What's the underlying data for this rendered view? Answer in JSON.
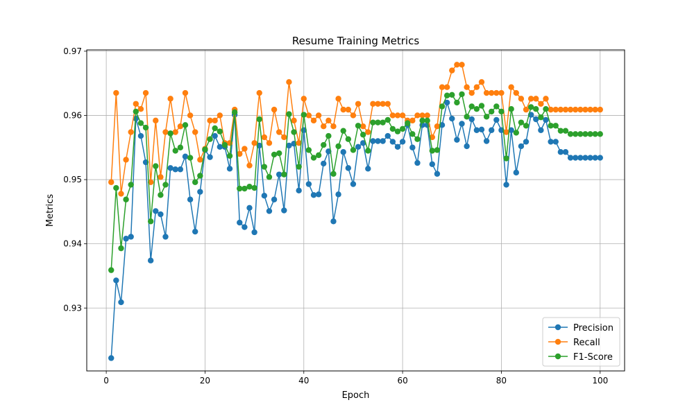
{
  "chart_data": {
    "type": "line",
    "title": "Resume Training Metrics",
    "xlabel": "Epoch",
    "ylabel": "Metrics",
    "xlim": [
      -3.95,
      104.95
    ],
    "ylim": [
      0.9202,
      0.9702
    ],
    "xticks": [
      0,
      20,
      40,
      60,
      80,
      100
    ],
    "xtick_labels": [
      "0",
      "20",
      "40",
      "60",
      "80",
      "100"
    ],
    "yticks": [
      0.93,
      0.94,
      0.95,
      0.96,
      0.97
    ],
    "ytick_labels": [
      "0.93",
      "0.94",
      "0.95",
      "0.96",
      "0.97"
    ],
    "grid": true,
    "legend_position": "lower-right",
    "series": [
      {
        "name": "Precision",
        "color": "#1f77b4",
        "values": [
          0.9222,
          0.9343,
          0.9309,
          0.9408,
          0.9411,
          0.9595,
          0.9568,
          0.9527,
          0.9374,
          0.9451,
          0.9446,
          0.9411,
          0.9518,
          0.9516,
          0.9516,
          0.9536,
          0.9469,
          0.9419,
          0.9481,
          0.9546,
          0.9535,
          0.9568,
          0.9551,
          0.9551,
          0.9517,
          0.9601,
          0.9433,
          0.9426,
          0.9456,
          0.9418,
          0.9553,
          0.9475,
          0.9451,
          0.9469,
          0.9508,
          0.9452,
          0.9553,
          0.9556,
          0.9483,
          0.9577,
          0.9493,
          0.9476,
          0.9477,
          0.9525,
          0.9544,
          0.9435,
          0.9477,
          0.9543,
          0.9518,
          0.9493,
          0.9551,
          0.9557,
          0.9517,
          0.956,
          0.956,
          0.956,
          0.9568,
          0.9559,
          0.9551,
          0.9559,
          0.9585,
          0.955,
          0.9526,
          0.9585,
          0.9585,
          0.9524,
          0.9509,
          0.9585,
          0.962,
          0.9595,
          0.9562,
          0.9587,
          0.9552,
          0.9594,
          0.9577,
          0.9578,
          0.956,
          0.9577,
          0.9593,
          0.9577,
          0.9492,
          0.9577,
          0.9511,
          0.9552,
          0.9559,
          0.9601,
          0.9594,
          0.9577,
          0.9593,
          0.9559,
          0.9559,
          0.9543,
          0.9543,
          0.9534,
          0.9534,
          0.9534,
          0.9534,
          0.9534,
          0.9534,
          0.9534
        ]
      },
      {
        "name": "Recall",
        "color": "#ff7f0e",
        "values": [
          0.9496,
          0.9635,
          0.9478,
          0.9531,
          0.9574,
          0.9618,
          0.961,
          0.9635,
          0.9496,
          0.9592,
          0.9504,
          0.9574,
          0.9626,
          0.9574,
          0.9583,
          0.9635,
          0.96,
          0.9574,
          0.9531,
          0.9548,
          0.9592,
          0.9592,
          0.96,
          0.9557,
          0.9557,
          0.9609,
          0.954,
          0.9548,
          0.9522,
          0.9557,
          0.9635,
          0.9566,
          0.9557,
          0.9609,
          0.9574,
          0.9566,
          0.9652,
          0.9592,
          0.9557,
          0.9626,
          0.96,
          0.9592,
          0.96,
          0.9583,
          0.9592,
          0.9583,
          0.9626,
          0.9609,
          0.9609,
          0.96,
          0.9618,
          0.9583,
          0.9574,
          0.9618,
          0.9618,
          0.9618,
          0.9618,
          0.96,
          0.96,
          0.96,
          0.9592,
          0.9592,
          0.96,
          0.96,
          0.96,
          0.9566,
          0.9583,
          0.9644,
          0.9644,
          0.967,
          0.9679,
          0.9679,
          0.9644,
          0.9635,
          0.9644,
          0.9652,
          0.9635,
          0.9635,
          0.9635,
          0.9635,
          0.9574,
          0.9644,
          0.9635,
          0.9626,
          0.9609,
          0.9626,
          0.9626,
          0.9618,
          0.9626,
          0.9609,
          0.9609,
          0.9609,
          0.9609,
          0.9609,
          0.9609,
          0.9609,
          0.9609,
          0.9609,
          0.9609,
          0.9609
        ]
      },
      {
        "name": "F1-Score",
        "color": "#2ca02c",
        "values": [
          0.9359,
          0.9487,
          0.9393,
          0.9469,
          0.9492,
          0.9606,
          0.9588,
          0.9581,
          0.9435,
          0.9521,
          0.9476,
          0.9492,
          0.9572,
          0.9545,
          0.955,
          0.9585,
          0.9534,
          0.9496,
          0.9506,
          0.9547,
          0.9563,
          0.958,
          0.9575,
          0.9554,
          0.9537,
          0.9605,
          0.9486,
          0.9486,
          0.9489,
          0.9487,
          0.9594,
          0.952,
          0.9504,
          0.9539,
          0.9541,
          0.9508,
          0.9602,
          0.9574,
          0.952,
          0.9601,
          0.9546,
          0.9534,
          0.9538,
          0.9554,
          0.9568,
          0.9509,
          0.9552,
          0.9576,
          0.9563,
          0.9546,
          0.9584,
          0.957,
          0.9545,
          0.9589,
          0.9589,
          0.9589,
          0.9593,
          0.9579,
          0.9575,
          0.9579,
          0.9588,
          0.9571,
          0.9563,
          0.9592,
          0.9592,
          0.9545,
          0.9546,
          0.9614,
          0.9631,
          0.9632,
          0.962,
          0.9633,
          0.9598,
          0.9614,
          0.961,
          0.9615,
          0.9598,
          0.9606,
          0.9614,
          0.9606,
          0.9533,
          0.961,
          0.9573,
          0.9589,
          0.9584,
          0.9613,
          0.961,
          0.9597,
          0.961,
          0.9584,
          0.9584,
          0.9576,
          0.9576,
          0.9571,
          0.9571,
          0.9571,
          0.9571,
          0.9571,
          0.9571,
          0.9571
        ]
      }
    ]
  }
}
